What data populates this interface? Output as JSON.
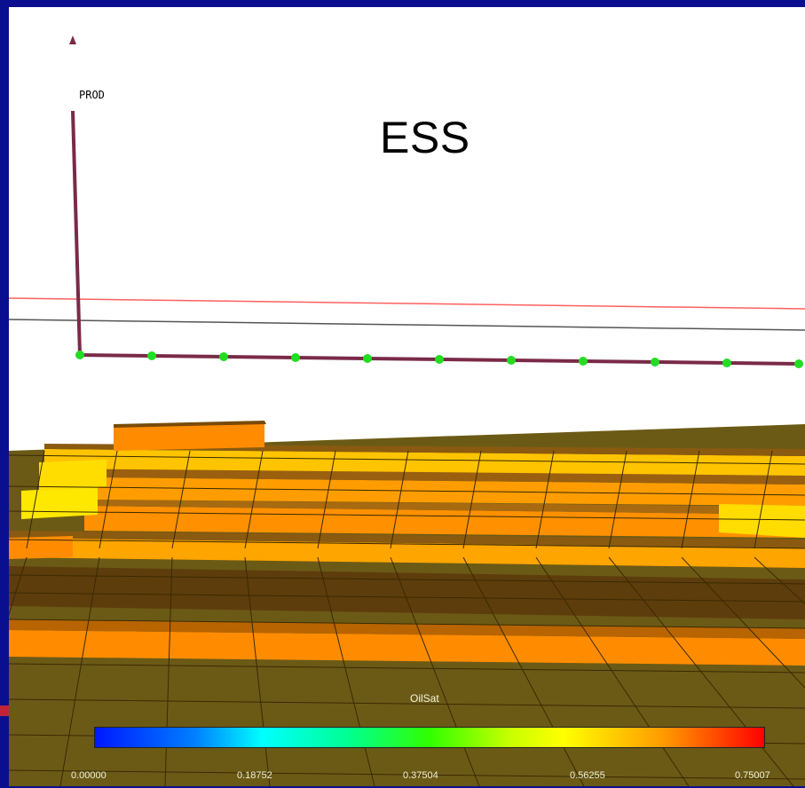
{
  "title": "ESS",
  "well": {
    "label": "PROD",
    "marker_color": "#7a2a48",
    "node_color": "#22dd22"
  },
  "legend": {
    "property": "OilSat",
    "ticks": [
      "0.00000",
      "0.18752",
      "0.37504",
      "0.56255",
      "0.75007"
    ],
    "min_color": "#0018ff",
    "max_color": "#ff0000"
  },
  "colors": {
    "background": "#0a0f8f",
    "grid_floor": "#6b5a16",
    "high_sat": "#ff8c00",
    "mid_sat": "#ffc400",
    "low_sat": "#ffff00",
    "ref_line_red": "#ff6060",
    "ref_line_gray": "#555555"
  }
}
